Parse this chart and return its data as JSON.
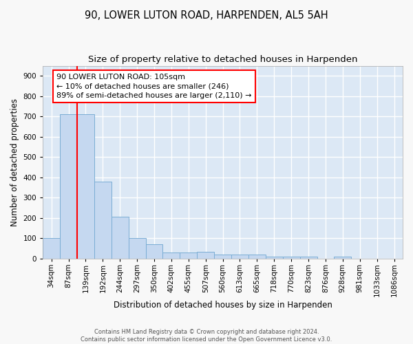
{
  "title": "90, LOWER LUTON ROAD, HARPENDEN, AL5 5AH",
  "subtitle": "Size of property relative to detached houses in Harpenden",
  "xlabel": "Distribution of detached houses by size in Harpenden",
  "ylabel": "Number of detached properties",
  "bar_labels": [
    "34sqm",
    "87sqm",
    "139sqm",
    "192sqm",
    "244sqm",
    "297sqm",
    "350sqm",
    "402sqm",
    "455sqm",
    "507sqm",
    "560sqm",
    "613sqm",
    "665sqm",
    "718sqm",
    "770sqm",
    "823sqm",
    "876sqm",
    "928sqm",
    "981sqm",
    "1033sqm",
    "1086sqm"
  ],
  "bar_values": [
    100,
    710,
    710,
    378,
    207,
    100,
    72,
    30,
    30,
    35,
    20,
    20,
    20,
    10,
    10,
    10,
    0,
    10,
    0,
    0,
    0
  ],
  "bar_color": "#c5d8f0",
  "bar_edge_color": "#7aadd4",
  "ylim": [
    0,
    950
  ],
  "yticks": [
    0,
    100,
    200,
    300,
    400,
    500,
    600,
    700,
    800,
    900
  ],
  "property_line_x": 1.5,
  "annotation_text_line1": "90 LOWER LUTON ROAD: 105sqm",
  "annotation_text_line2": "← 10% of detached houses are smaller (246)",
  "annotation_text_line3": "89% of semi-detached houses are larger (2,110) →",
  "footer_line1": "Contains HM Land Registry data © Crown copyright and database right 2024.",
  "footer_line2": "Contains public sector information licensed under the Open Government Licence v3.0.",
  "background_color": "#dce8f5",
  "fig_background_color": "#f8f8f8",
  "grid_color": "#ffffff",
  "title_fontsize": 10.5,
  "subtitle_fontsize": 9.5,
  "axis_label_fontsize": 8.5,
  "tick_fontsize": 7.5,
  "annotation_fontsize": 8,
  "footer_fontsize": 6
}
